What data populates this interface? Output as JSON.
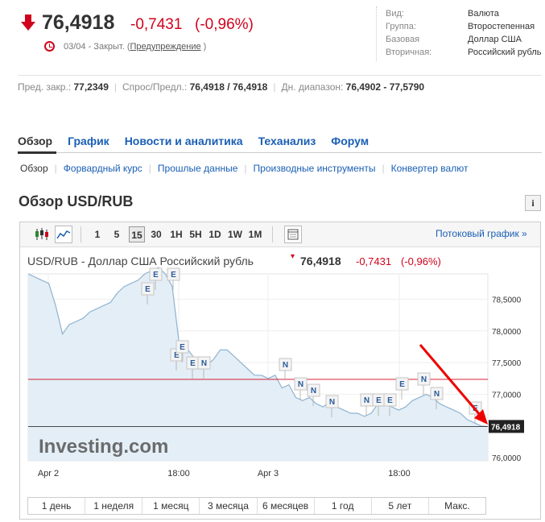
{
  "quote": {
    "price": "76,4918",
    "change": "-0,7431",
    "change_pct": "(-0,96%)",
    "date": "03/04",
    "status": " - Закрыт. (",
    "warning_link": "Предупреждение",
    "close_paren": " )"
  },
  "info": [
    {
      "label": "Вид:",
      "value": "Валюта"
    },
    {
      "label": "Группа:",
      "value": "Второстепенная"
    },
    {
      "label": "Базовая",
      "value": "Доллар США"
    },
    {
      "label": "Вторичная:",
      "value": "Российский рубль"
    }
  ],
  "stats": {
    "prev_close_label": "Пред. закр.:",
    "prev_close": "77,2349",
    "bid_ask_label": "Спрос/Предл.:",
    "bid_ask": "76,4918 / 76,4918",
    "day_range_label": "Дн. диапазон:",
    "day_range": "76,4902 - 77,5790"
  },
  "tabs": [
    "Обзор",
    "График",
    "Новости и аналитика",
    "Теханализ",
    "Форум"
  ],
  "subtabs": [
    "Обзор",
    "Форвардный курс",
    "Прошлые данные",
    "Производные инструменты",
    "Конвертер валют"
  ],
  "section_title": "Обзор USD/RUB",
  "info_icon": "i",
  "toolbar": {
    "intervals": [
      "1",
      "5",
      "15",
      "30",
      "1H",
      "5H",
      "1D",
      "1W",
      "1M"
    ],
    "selected": "15",
    "stream_label": "Потоковый график »"
  },
  "chart_header": {
    "title": "USD/RUB - Доллар США Российский рубль",
    "price": "76,4918",
    "change": "-0,7431",
    "change_pct": "(-0,96%)"
  },
  "chart_data": {
    "type": "area",
    "x_ticks": [
      "Apr 2",
      "18:00",
      "Apr 3",
      "18:00"
    ],
    "y_ticks": [
      "78,5000",
      "78,0000",
      "77,5000",
      "77,0000",
      "76,0000"
    ],
    "ylim": [
      75.95,
      78.9
    ],
    "prev_close": 77.2349,
    "last_label": "76,4918",
    "last": 76.4918,
    "watermark": "Investing.com",
    "series": [
      {
        "values": [
          78.9,
          78.85,
          78.8,
          78.75,
          78.4,
          77.95,
          78.1,
          78.15,
          78.2,
          78.3,
          78.35,
          78.4,
          78.45,
          78.6,
          78.7,
          78.75,
          78.8,
          78.9,
          78.95,
          79.0,
          78.9,
          78.7,
          77.8,
          77.75,
          77.6,
          77.45,
          77.45,
          77.55,
          77.7,
          77.7,
          77.6,
          77.5,
          77.4,
          77.3,
          77.3,
          77.25,
          77.3,
          77.1,
          77.15,
          76.95,
          76.9,
          76.95,
          76.85,
          76.8,
          76.9,
          76.8,
          76.75,
          76.7,
          76.7,
          76.65,
          76.7,
          76.85,
          76.9,
          76.8,
          76.75,
          76.8,
          76.9,
          76.95,
          77.0,
          76.95,
          76.85,
          76.8,
          76.75,
          76.7,
          76.6,
          76.55,
          76.5,
          76.49
        ]
      }
    ],
    "markers": [
      "E",
      "E",
      "E",
      "E",
      "E",
      "N",
      "N",
      "N",
      "N",
      "N",
      "N",
      "E",
      "E",
      "E",
      "N",
      "N",
      "E",
      "E"
    ]
  },
  "periods": [
    "1 день",
    "1 неделя",
    "1 месяц",
    "3 месяца",
    "6 месяцев",
    "1 год",
    "5 лет",
    "Макс."
  ]
}
